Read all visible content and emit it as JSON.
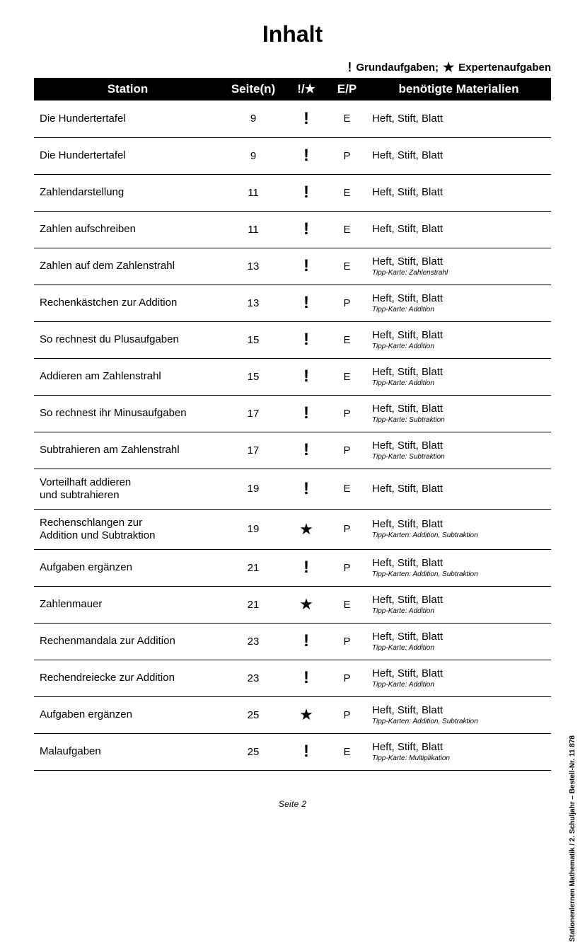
{
  "title": "Inhalt",
  "legend": {
    "basic": "Grundaufgaben;",
    "expert": "Expertenaufgaben"
  },
  "columns": {
    "station": "Station",
    "pages": "Seite(n)",
    "symbol": "!/★",
    "ep": "E/P",
    "materials": "benötigte Materialien"
  },
  "symbols": {
    "basic": "!",
    "expert": "★"
  },
  "rows": [
    {
      "station": "Die Hundertertafel",
      "pages": "9",
      "level": "basic",
      "ep": "E",
      "materials": "Heft, Stift, Blatt",
      "tip": ""
    },
    {
      "station": "Die Hundertertafel",
      "pages": "9",
      "level": "basic",
      "ep": "P",
      "materials": "Heft, Stift, Blatt",
      "tip": ""
    },
    {
      "station": "Zahlendarstellung",
      "pages": "11",
      "level": "basic",
      "ep": "E",
      "materials": "Heft, Stift, Blatt",
      "tip": ""
    },
    {
      "station": "Zahlen aufschreiben",
      "pages": "11",
      "level": "basic",
      "ep": "E",
      "materials": "Heft, Stift, Blatt",
      "tip": ""
    },
    {
      "station": "Zahlen auf dem Zahlenstrahl",
      "pages": "13",
      "level": "basic",
      "ep": "E",
      "materials": "Heft, Stift, Blatt",
      "tip": "Tipp-Karte: Zahlenstrahl"
    },
    {
      "station": "Rechenkästchen zur Addition",
      "pages": "13",
      "level": "basic",
      "ep": "P",
      "materials": "Heft, Stift, Blatt",
      "tip": "Tipp-Karte: Addition"
    },
    {
      "station": "So rechnest du Plusaufgaben",
      "pages": "15",
      "level": "basic",
      "ep": "E",
      "materials": "Heft, Stift, Blatt",
      "tip": "Tipp-Karte: Addition"
    },
    {
      "station": "Addieren am Zahlenstrahl",
      "pages": "15",
      "level": "basic",
      "ep": "E",
      "materials": "Heft, Stift, Blatt",
      "tip": "Tipp-Karte: Addition"
    },
    {
      "station": "So rechnest ihr Minusaufgaben",
      "pages": "17",
      "level": "basic",
      "ep": "P",
      "materials": "Heft, Stift, Blatt",
      "tip": "Tipp-Karte: Subtraktion"
    },
    {
      "station": "Subtrahieren am Zahlenstrahl",
      "pages": "17",
      "level": "basic",
      "ep": "P",
      "materials": "Heft, Stift, Blatt",
      "tip": "Tipp-Karte: Subtraktion"
    },
    {
      "station": "Vorteilhaft addieren\nund subtrahieren",
      "pages": "19",
      "level": "basic",
      "ep": "E",
      "materials": "Heft, Stift, Blatt",
      "tip": ""
    },
    {
      "station": "Rechenschlangen zur\nAddition und Subtraktion",
      "pages": "19",
      "level": "expert",
      "ep": "P",
      "materials": "Heft, Stift, Blatt",
      "tip": "Tipp-Karten: Addition, Subtraktion"
    },
    {
      "station": "Aufgaben ergänzen",
      "pages": "21",
      "level": "basic",
      "ep": "P",
      "materials": "Heft, Stift, Blatt",
      "tip": "Tipp-Karten: Addition, Subtraktion"
    },
    {
      "station": "Zahlenmauer",
      "pages": "21",
      "level": "expert",
      "ep": "E",
      "materials": "Heft, Stift, Blatt",
      "tip": "Tipp-Karte: Addition"
    },
    {
      "station": "Rechenmandala zur Addition",
      "pages": "23",
      "level": "basic",
      "ep": "P",
      "materials": "Heft, Stift, Blatt",
      "tip": "Tipp-Karte: Addition"
    },
    {
      "station": "Rechendreiecke zur Addition",
      "pages": "23",
      "level": "basic",
      "ep": "P",
      "materials": "Heft, Stift, Blatt",
      "tip": "Tipp-Karte: Addition"
    },
    {
      "station": "Aufgaben ergänzen",
      "pages": "25",
      "level": "expert",
      "ep": "P",
      "materials": "Heft, Stift, Blatt",
      "tip": "Tipp-Karten: Addition, Subtraktion"
    },
    {
      "station": "Malaufgaben",
      "pages": "25",
      "level": "basic",
      "ep": "E",
      "materials": "Heft, Stift, Blatt",
      "tip": "Tipp-Karte: Multiplikation"
    }
  ],
  "footer": {
    "page_label": "Seite 2"
  },
  "side": "Stationenlernen Mathematik  /  2. Schuljahr   –   Bestell-Nr. 11 878"
}
